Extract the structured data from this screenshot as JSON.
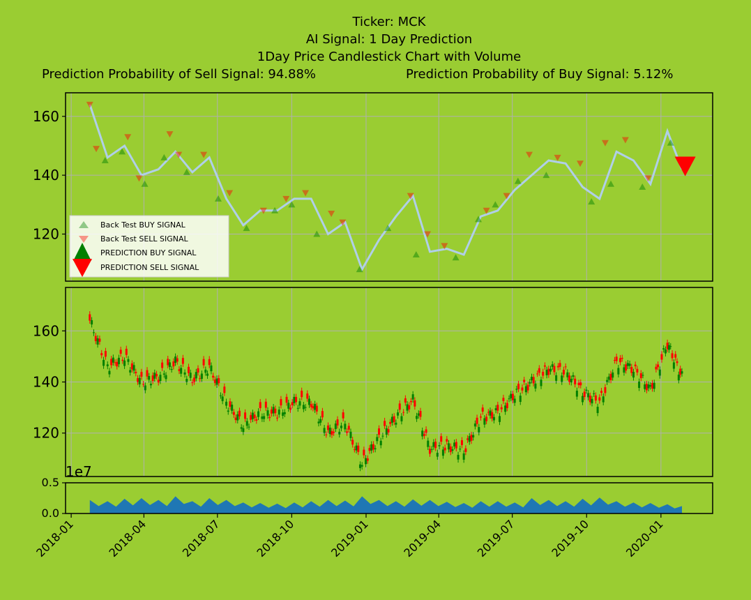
{
  "header": {
    "line1": "Ticker: MCK",
    "line2": "AI Signal: 1 Day Prediction",
    "line3": "1Day Price Candlestick Chart with Volume",
    "line4a": "Prediction Probability of Sell Signal: 94.88%",
    "line4b": "Prediction Probability of Buy Signal: 5.12%"
  },
  "legend": {
    "bt_buy": "Back Test BUY SIGNAL",
    "bt_sell": "Back Test SELL SIGNAL",
    "pred_buy": "PREDICTION BUY SIGNAL",
    "pred_sell": "PREDICTION SELL SIGNAL"
  },
  "volume_exponent": "1e7",
  "colors": {
    "background": "#9acd32",
    "buy": "#008000",
    "sell": "#ff0000",
    "price_line": "#b0cfe8",
    "volume": "#1f77b4",
    "grid": "#b0b0b0"
  },
  "chart_data": [
    {
      "type": "line",
      "panel": "signals",
      "ylim": [
        104,
        168
      ],
      "yticks": [
        120,
        140,
        160
      ],
      "x": [
        "2018-01-24",
        "2018-02-15",
        "2018-03-08",
        "2018-03-29",
        "2018-04-19",
        "2018-05-10",
        "2018-05-31",
        "2018-06-21",
        "2018-07-12",
        "2018-08-02",
        "2018-08-23",
        "2018-09-13",
        "2018-10-04",
        "2018-10-25",
        "2018-11-15",
        "2018-12-06",
        "2018-12-27",
        "2019-01-17",
        "2019-02-07",
        "2019-02-28",
        "2019-03-21",
        "2019-04-11",
        "2019-05-02",
        "2019-05-23",
        "2019-06-13",
        "2019-07-04",
        "2019-07-25",
        "2019-08-15",
        "2019-09-05",
        "2019-09-26",
        "2019-10-17",
        "2019-11-07",
        "2019-11-28",
        "2019-12-19",
        "2020-01-09",
        "2020-01-27"
      ],
      "close": [
        164,
        146,
        150,
        140,
        142,
        148,
        141,
        146,
        132,
        123,
        128,
        128,
        132,
        132,
        120,
        124,
        108,
        118,
        126,
        133,
        114,
        115,
        113,
        126,
        128,
        135,
        140,
        145,
        144,
        136,
        132,
        148,
        145,
        137,
        155,
        142
      ],
      "buy_signals": [
        {
          "x": "2018-02-12",
          "y": 145
        },
        {
          "x": "2018-03-05",
          "y": 148
        },
        {
          "x": "2018-04-02",
          "y": 137
        },
        {
          "x": "2018-04-26",
          "y": 146
        },
        {
          "x": "2018-05-24",
          "y": 141
        },
        {
          "x": "2018-07-02",
          "y": 132
        },
        {
          "x": "2018-08-06",
          "y": 122
        },
        {
          "x": "2018-09-10",
          "y": 128
        },
        {
          "x": "2018-10-01",
          "y": 130
        },
        {
          "x": "2018-11-01",
          "y": 120
        },
        {
          "x": "2018-12-24",
          "y": 108
        },
        {
          "x": "2019-01-28",
          "y": 122
        },
        {
          "x": "2019-03-04",
          "y": 113
        },
        {
          "x": "2019-04-22",
          "y": 112
        },
        {
          "x": "2019-05-20",
          "y": 125
        },
        {
          "x": "2019-06-10",
          "y": 130
        },
        {
          "x": "2019-07-08",
          "y": 138
        },
        {
          "x": "2019-08-12",
          "y": 140
        },
        {
          "x": "2019-10-07",
          "y": 131
        },
        {
          "x": "2019-10-31",
          "y": 137
        },
        {
          "x": "2019-12-09",
          "y": 136
        },
        {
          "x": "2020-01-13",
          "y": 151
        }
      ],
      "sell_signals": [
        {
          "x": "2018-01-24",
          "y": 164
        },
        {
          "x": "2018-02-01",
          "y": 149
        },
        {
          "x": "2018-03-12",
          "y": 153
        },
        {
          "x": "2018-03-26",
          "y": 139
        },
        {
          "x": "2018-05-03",
          "y": 154
        },
        {
          "x": "2018-05-14",
          "y": 147
        },
        {
          "x": "2018-06-14",
          "y": 147
        },
        {
          "x": "2018-07-16",
          "y": 134
        },
        {
          "x": "2018-08-27",
          "y": 128
        },
        {
          "x": "2018-09-24",
          "y": 132
        },
        {
          "x": "2018-10-18",
          "y": 134
        },
        {
          "x": "2018-11-19",
          "y": 127
        },
        {
          "x": "2018-12-03",
          "y": 124
        },
        {
          "x": "2019-02-25",
          "y": 133
        },
        {
          "x": "2019-03-18",
          "y": 120
        },
        {
          "x": "2019-04-08",
          "y": 116
        },
        {
          "x": "2019-05-30",
          "y": 128
        },
        {
          "x": "2019-06-24",
          "y": 133
        },
        {
          "x": "2019-07-22",
          "y": 147
        },
        {
          "x": "2019-08-26",
          "y": 146
        },
        {
          "x": "2019-09-23",
          "y": 144
        },
        {
          "x": "2019-10-24",
          "y": 151
        },
        {
          "x": "2019-11-18",
          "y": 152
        },
        {
          "x": "2019-12-16",
          "y": 139
        }
      ],
      "prediction_sell": {
        "x": "2020-01-31",
        "y": 143
      }
    },
    {
      "type": "candlestick",
      "panel": "price",
      "ylim": [
        103,
        177
      ],
      "yticks": [
        120,
        140,
        160
      ],
      "x": [
        "2018-01-24",
        "2018-02-15",
        "2018-03-08",
        "2018-03-29",
        "2018-04-19",
        "2018-05-10",
        "2018-05-31",
        "2018-06-21",
        "2018-07-12",
        "2018-08-02",
        "2018-08-23",
        "2018-09-13",
        "2018-10-04",
        "2018-10-25",
        "2018-11-15",
        "2018-12-06",
        "2018-12-27",
        "2019-01-17",
        "2019-02-07",
        "2019-02-28",
        "2019-03-21",
        "2019-04-11",
        "2019-05-02",
        "2019-05-23",
        "2019-06-13",
        "2019-07-04",
        "2019-07-25",
        "2019-08-15",
        "2019-09-05",
        "2019-09-26",
        "2019-10-17",
        "2019-11-07",
        "2019-11-28",
        "2019-12-19",
        "2020-01-09",
        "2020-01-27"
      ],
      "close": [
        164,
        146,
        150,
        140,
        142,
        148,
        141,
        146,
        132,
        123,
        128,
        128,
        132,
        132,
        120,
        124,
        108,
        118,
        126,
        133,
        114,
        115,
        113,
        126,
        128,
        135,
        140,
        145,
        144,
        136,
        132,
        148,
        145,
        137,
        155,
        142
      ]
    },
    {
      "type": "area",
      "panel": "volume",
      "ylim": [
        0,
        0.5
      ],
      "yticks": [
        "0.0",
        "0.5"
      ],
      "x": [
        "2018-01-24",
        "2018-02-15",
        "2018-03-08",
        "2018-03-29",
        "2018-04-19",
        "2018-05-10",
        "2018-05-31",
        "2018-06-21",
        "2018-07-12",
        "2018-08-02",
        "2018-08-23",
        "2018-09-13",
        "2018-10-04",
        "2018-10-25",
        "2018-11-15",
        "2018-12-06",
        "2018-12-27",
        "2019-01-17",
        "2019-02-07",
        "2019-02-28",
        "2019-03-21",
        "2019-04-11",
        "2019-05-02",
        "2019-05-23",
        "2019-06-13",
        "2019-07-04",
        "2019-07-25",
        "2019-08-15",
        "2019-09-05",
        "2019-09-26",
        "2019-10-17",
        "2019-11-07",
        "2019-11-28",
        "2019-12-19",
        "2020-01-09",
        "2020-01-27"
      ],
      "values": [
        0.22,
        0.2,
        0.24,
        0.25,
        0.22,
        0.28,
        0.2,
        0.25,
        0.22,
        0.18,
        0.17,
        0.16,
        0.18,
        0.2,
        0.22,
        0.21,
        0.28,
        0.22,
        0.2,
        0.23,
        0.22,
        0.19,
        0.17,
        0.2,
        0.2,
        0.18,
        0.25,
        0.22,
        0.2,
        0.24,
        0.26,
        0.2,
        0.18,
        0.17,
        0.15,
        0.12
      ]
    }
  ],
  "xaxis": {
    "xlim": [
      "2017-12-25",
      "2020-03-05"
    ],
    "ticks": [
      "2018-01",
      "2018-04",
      "2018-07",
      "2018-10",
      "2019-01",
      "2019-04",
      "2019-07",
      "2019-10",
      "2020-01"
    ]
  }
}
